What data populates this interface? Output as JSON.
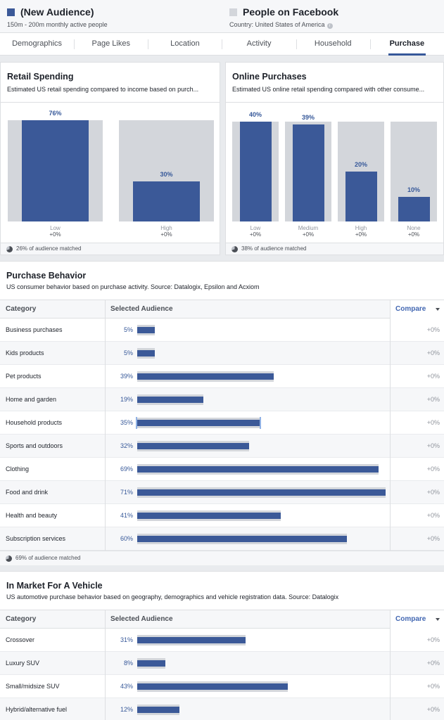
{
  "header": {
    "audience": {
      "name": "(New Audience)",
      "subtitle": "150m - 200m monthly active people",
      "color": "#3b5998"
    },
    "comparison": {
      "name": "People on Facebook",
      "subtitle": "Country: United States of America",
      "color": "#d3d6db",
      "info_glyph": "i"
    }
  },
  "tabs": [
    {
      "label": "Demographics",
      "active": false
    },
    {
      "label": "Page Likes",
      "active": false
    },
    {
      "label": "Location",
      "active": false
    },
    {
      "label": "Activity",
      "active": false
    },
    {
      "label": "Household",
      "active": false
    },
    {
      "label": "Purchase",
      "active": true
    }
  ],
  "retail_spending": {
    "title": "Retail Spending",
    "subtitle": "Estimated US retail spending compared to income based on purch...",
    "matched": "26% of audience matched",
    "bars": [
      {
        "label": "Low",
        "value": 76,
        "pct_label": "76%",
        "compare": "+0%"
      },
      {
        "label": "High",
        "value": 30,
        "pct_label": "30%",
        "compare": "+0%"
      }
    ]
  },
  "online_purchases": {
    "title": "Online Purchases",
    "subtitle": "Estimated US online retail spending compared with other consume...",
    "matched": "38% of audience matched",
    "bars": [
      {
        "label": "Low",
        "value": 40,
        "pct_label": "40%",
        "compare": "+0%"
      },
      {
        "label": "Medium",
        "value": 39,
        "pct_label": "39%",
        "compare": "+0%"
      },
      {
        "label": "High",
        "value": 20,
        "pct_label": "20%",
        "compare": "+0%"
      },
      {
        "label": "None",
        "value": 10,
        "pct_label": "10%",
        "compare": "+0%"
      }
    ]
  },
  "purchase_behavior": {
    "title": "Purchase Behavior",
    "subtitle": "US consumer behavior based on purchase activity. Source: Datalogix, Epsilon and Acxiom",
    "col_category": "Category",
    "col_selected": "Selected Audience",
    "col_compare": "Compare",
    "matched": "69% of audience matched",
    "rows": [
      {
        "category": "Business purchases",
        "value": 5,
        "pct_label": "5%",
        "compare": "+0%"
      },
      {
        "category": "Kids products",
        "value": 5,
        "pct_label": "5%",
        "compare": "+0%"
      },
      {
        "category": "Pet products",
        "value": 39,
        "pct_label": "39%",
        "compare": "+0%"
      },
      {
        "category": "Home and garden",
        "value": 19,
        "pct_label": "19%",
        "compare": "+0%"
      },
      {
        "category": "Household products",
        "value": 35,
        "pct_label": "35%",
        "compare": "+0%",
        "highlight": true
      },
      {
        "category": "Sports and outdoors",
        "value": 32,
        "pct_label": "32%",
        "compare": "+0%"
      },
      {
        "category": "Clothing",
        "value": 69,
        "pct_label": "69%",
        "compare": "+0%"
      },
      {
        "category": "Food and drink",
        "value": 71,
        "pct_label": "71%",
        "compare": "+0%"
      },
      {
        "category": "Health and beauty",
        "value": 41,
        "pct_label": "41%",
        "compare": "+0%"
      },
      {
        "category": "Subscription services",
        "value": 60,
        "pct_label": "60%",
        "compare": "+0%"
      }
    ]
  },
  "vehicle": {
    "title": "In Market For A Vehicle",
    "subtitle": "US automotive purchase behavior based on geography, demographics and vehicle registration data. Source: Datalogix",
    "col_category": "Category",
    "col_selected": "Selected Audience",
    "col_compare": "Compare",
    "rows": [
      {
        "category": "Crossover",
        "value": 31,
        "pct_label": "31%",
        "compare": "+0%"
      },
      {
        "category": "Luxury SUV",
        "value": 8,
        "pct_label": "8%",
        "compare": "+0%"
      },
      {
        "category": "Small/midsize SUV",
        "value": 43,
        "pct_label": "43%",
        "compare": "+0%"
      },
      {
        "category": "Hybrid/alternative fuel",
        "value": 12,
        "pct_label": "12%",
        "compare": "+0%"
      }
    ]
  }
}
